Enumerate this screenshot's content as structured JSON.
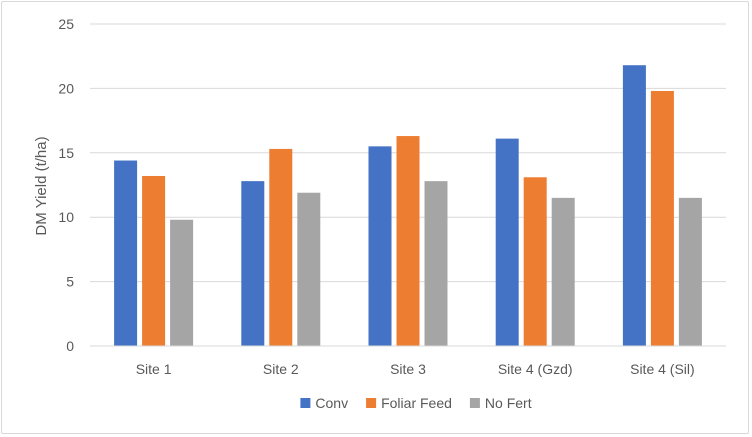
{
  "chart_data": {
    "type": "bar",
    "title": "",
    "xlabel": "",
    "ylabel": "DM Yield (t/ha)",
    "ylim": [
      0,
      25
    ],
    "yticks": [
      0,
      5,
      10,
      15,
      20,
      25
    ],
    "grid": true,
    "legend_position": "bottom",
    "categories": [
      "Site 1",
      "Site 2",
      "Site 3",
      "Site 4 (Gzd)",
      "Site 4 (Sil)"
    ],
    "series": [
      {
        "name": "Conv",
        "color": "#4472c4",
        "values": [
          14.4,
          12.8,
          15.5,
          16.1,
          21.8
        ]
      },
      {
        "name": "Foliar Feed",
        "color": "#ed7d31",
        "values": [
          13.2,
          15.3,
          16.3,
          13.1,
          19.8
        ]
      },
      {
        "name": "No Fert",
        "color": "#a5a5a5",
        "values": [
          9.8,
          11.9,
          12.8,
          11.5,
          11.5
        ]
      }
    ]
  }
}
